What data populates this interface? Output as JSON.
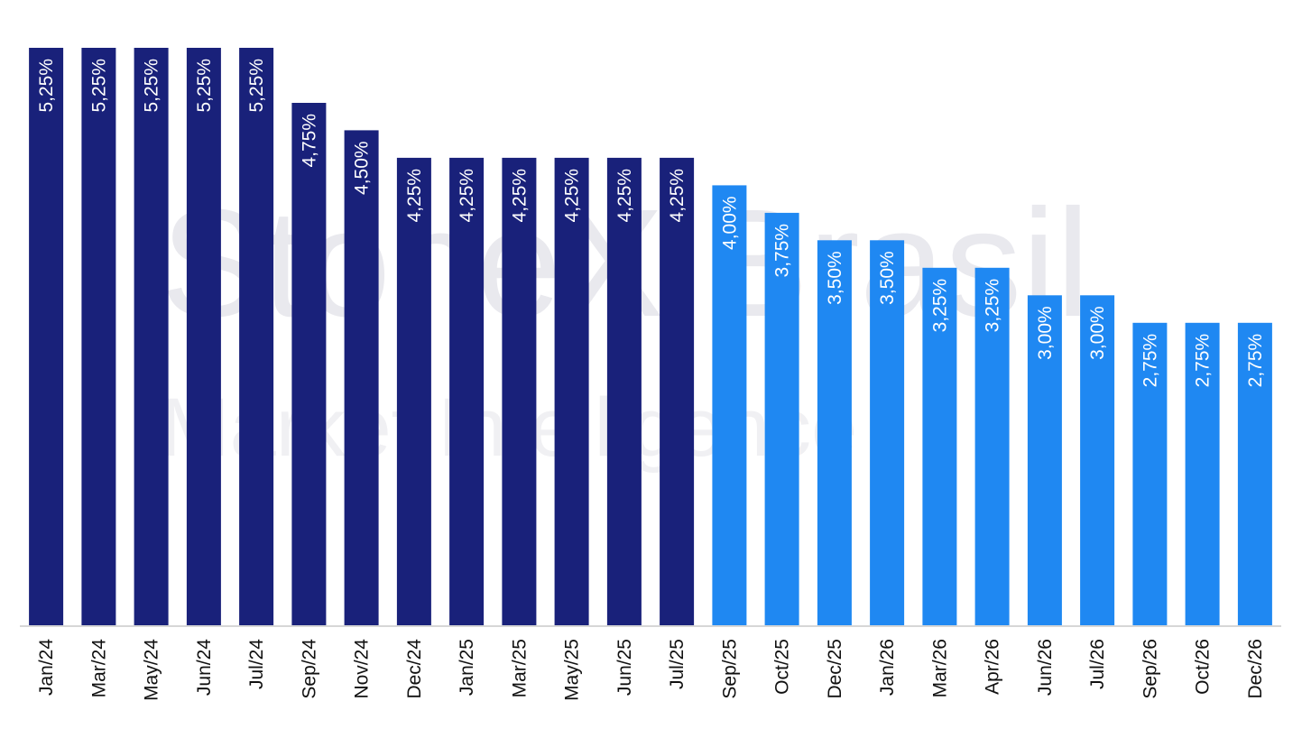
{
  "watermark": {
    "line1": "StoneX Brasil",
    "line2": "Market Intelligence"
  },
  "colors": {
    "actual": "#19217a",
    "forecast": "#1f88f2",
    "axis": "#c9c9c9",
    "label": "#ffffff",
    "tick": "#111111"
  },
  "chart_data": {
    "type": "bar",
    "title": "",
    "xlabel": "",
    "ylabel": "",
    "ylim": [
      0,
      5.25
    ],
    "grid": false,
    "legend": "none",
    "categories": [
      "Jan/24",
      "Mar/24",
      "May/24",
      "Jun/24",
      "Jul/24",
      "Sep/24",
      "Nov/24",
      "Dec/24",
      "Jan/25",
      "Mar/25",
      "May/25",
      "Jun/25",
      "Jul/25",
      "Sep/25",
      "Oct/25",
      "Dec/25",
      "Jan/26",
      "Mar/26",
      "Apr/26",
      "Jun/26",
      "Jul/26",
      "Sep/26",
      "Oct/26",
      "Dec/26"
    ],
    "values": [
      5.25,
      5.25,
      5.25,
      5.25,
      5.25,
      4.75,
      4.5,
      4.25,
      4.25,
      4.25,
      4.25,
      4.25,
      4.25,
      4.0,
      3.75,
      3.5,
      3.5,
      3.25,
      3.25,
      3.0,
      3.0,
      2.75,
      2.75,
      2.75
    ],
    "value_labels": [
      "5,25%",
      "5,25%",
      "5,25%",
      "5,25%",
      "5,25%",
      "4,75%",
      "4,50%",
      "4,25%",
      "4,25%",
      "4,25%",
      "4,25%",
      "4,25%",
      "4,25%",
      "4,00%",
      "3,75%",
      "3,50%",
      "3,50%",
      "3,25%",
      "3,25%",
      "3,00%",
      "3,00%",
      "2,75%",
      "2,75%",
      "2,75%"
    ],
    "forecast_from_index": 13
  }
}
